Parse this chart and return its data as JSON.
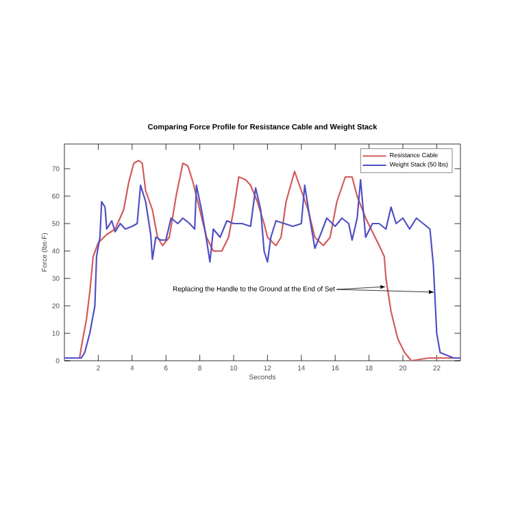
{
  "chart_data": {
    "type": "line",
    "title": "Comparing Force Profile for Resistance Cable and Weight Stack",
    "xlabel": "Seconds",
    "ylabel": "Force (lbs-F)",
    "xlim": [
      0,
      23.4
    ],
    "ylim": [
      0,
      79
    ],
    "xticks": [
      2,
      4,
      6,
      8,
      10,
      12,
      14,
      16,
      18,
      20,
      22
    ],
    "yticks": [
      0,
      10,
      20,
      30,
      40,
      50,
      60,
      70
    ],
    "legend": "top right",
    "grid": false,
    "marker": "none",
    "line_style": "solid",
    "series": [
      {
        "name": "Resistance Cable",
        "color": "#d45a5a",
        "x": [
          0,
          0.9,
          1.0,
          1.3,
          1.5,
          1.7,
          2.0,
          2.5,
          3.0,
          3.5,
          3.8,
          4.1,
          4.4,
          4.6,
          4.8,
          5.2,
          5.5,
          5.8,
          6.2,
          6.6,
          7.0,
          7.3,
          7.6,
          8.0,
          8.4,
          8.8,
          9.3,
          9.7,
          10.0,
          10.3,
          10.7,
          11.0,
          11.4,
          11.8,
          12.0,
          12.5,
          12.8,
          13.1,
          13.6,
          14.0,
          14.4,
          14.8,
          15.3,
          15.7,
          16.1,
          16.6,
          17.0,
          17.3,
          17.8,
          18.2,
          18.6,
          18.9,
          19.0,
          19.3,
          19.7,
          20.1,
          20.5,
          21.0,
          21.5,
          23.4
        ],
        "values": [
          1,
          1,
          5,
          15,
          25,
          38,
          43,
          46,
          48,
          55,
          65,
          72,
          73,
          72,
          62,
          55,
          45,
          42,
          45,
          60,
          72,
          71,
          65,
          55,
          45,
          40,
          40,
          45,
          55,
          67,
          66,
          64,
          58,
          50,
          45,
          42,
          45,
          58,
          69,
          62,
          55,
          45,
          42,
          45,
          58,
          67,
          67,
          60,
          52,
          47,
          42,
          38,
          30,
          18,
          8,
          3,
          0,
          0.5,
          1,
          1
        ]
      },
      {
        "name": "Weight Stack (50 lbs)",
        "color": "#4f4fc4",
        "x": [
          0,
          1.0,
          1.2,
          1.5,
          1.8,
          1.9,
          2.1,
          2.2,
          2.4,
          2.5,
          2.8,
          3.0,
          3.3,
          3.6,
          4.0,
          4.3,
          4.5,
          4.8,
          5.1,
          5.2,
          5.4,
          5.7,
          6.0,
          6.3,
          6.7,
          7.0,
          7.4,
          7.7,
          7.8,
          8.1,
          8.4,
          8.6,
          8.8,
          9.2,
          9.6,
          10.0,
          10.5,
          11.0,
          11.3,
          11.6,
          11.8,
          12.0,
          12.2,
          12.5,
          13.0,
          13.5,
          14.0,
          14.2,
          14.5,
          14.8,
          15.2,
          15.5,
          16.0,
          16.4,
          16.8,
          17.0,
          17.3,
          17.5,
          17.8,
          18.2,
          18.6,
          19.0,
          19.3,
          19.6,
          20.0,
          20.4,
          20.8,
          21.2,
          21.6,
          21.8,
          22.0,
          22.2,
          22.6,
          23.0,
          23.4
        ],
        "values": [
          1,
          1,
          3,
          10,
          20,
          38,
          45,
          58,
          56,
          48,
          51,
          47,
          50,
          48,
          49,
          50,
          64,
          58,
          46,
          37,
          45,
          44,
          44,
          52,
          50,
          52,
          50,
          48,
          64,
          55,
          44,
          36,
          48,
          45,
          51,
          50,
          50,
          49,
          63,
          55,
          40,
          36,
          45,
          51,
          50,
          49,
          50,
          64,
          52,
          41,
          47,
          52,
          49,
          52,
          50,
          44,
          52,
          66,
          45,
          50,
          50,
          48,
          56,
          50,
          52,
          48,
          52,
          50,
          48,
          35,
          10,
          3,
          2,
          1,
          1
        ]
      }
    ],
    "annotations": [
      {
        "text": "Replacing the Handle to the Ground at the End of Set",
        "x": 19.0,
        "y": 27
      }
    ]
  }
}
